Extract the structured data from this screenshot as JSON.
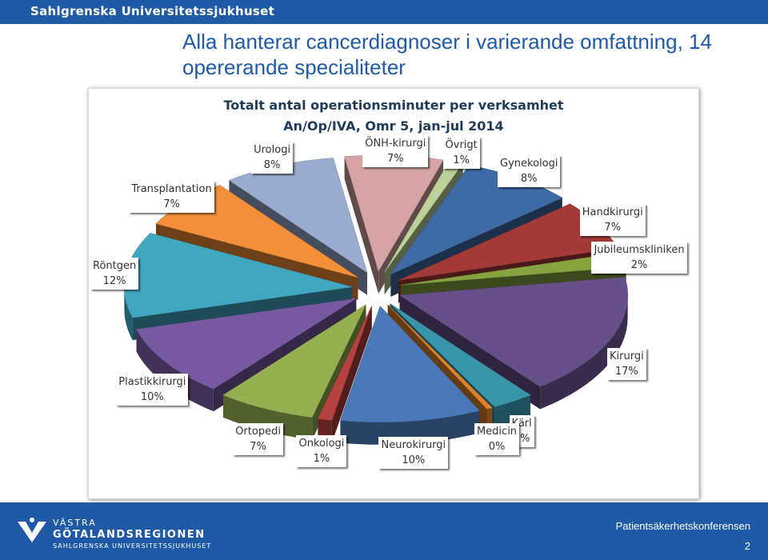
{
  "header": {
    "org_title": "Sahlgrenska Universitetssjukhuset"
  },
  "slide": {
    "title": "Alla hanterar cancerdiagnoser i varierande omfattning, 14 opererande specialiteter"
  },
  "chart_data": {
    "type": "pie",
    "title_line1": "Totalt antal operationsminuter per verksamhet",
    "title_line2": "An/Op/IVA, Omr 5, jan-jul 2014",
    "exploded": true,
    "three_d": true,
    "slices": [
      {
        "name": "Gynekologi",
        "value": 8,
        "label": "8%",
        "color": "#3e6aa5"
      },
      {
        "name": "Handkirurgi",
        "value": 7,
        "label": "7%",
        "color": "#a33a37"
      },
      {
        "name": "Jubileumskliniken",
        "value": 2,
        "label": "2%",
        "color": "#86a33f"
      },
      {
        "name": "Kirurgi",
        "value": 17,
        "label": "17%",
        "color": "#67508a"
      },
      {
        "name": "Kärl",
        "value": 3,
        "label": "3%",
        "color": "#3895aa"
      },
      {
        "name": "Medicin",
        "value": 0.4,
        "label": "0%",
        "color": "#e0822c"
      },
      {
        "name": "Neurokirurgi",
        "value": 10,
        "label": "10%",
        "color": "#4a78b8"
      },
      {
        "name": "Onkologi",
        "value": 1,
        "label": "1%",
        "color": "#b64240"
      },
      {
        "name": "Ortopedi",
        "value": 7,
        "label": "7%",
        "color": "#95b050"
      },
      {
        "name": "Plastikkirurgi",
        "value": 10,
        "label": "10%",
        "color": "#7659a0"
      },
      {
        "name": "Röntgen",
        "value": 12,
        "label": "12%",
        "color": "#40a7c0"
      },
      {
        "name": "Transplantation",
        "value": 7,
        "label": "7%",
        "color": "#f28f38"
      },
      {
        "name": "Urologi",
        "value": 8,
        "label": "8%",
        "color": "#9aabcf"
      },
      {
        "name": "ÖNH-kirurgi",
        "value": 7,
        "label": "7%",
        "color": "#d7a4a5"
      },
      {
        "name": "Övrigt",
        "value": 1,
        "label": "1%",
        "color": "#bcd29a"
      }
    ]
  },
  "footer": {
    "org_line1": "VÄSTRA",
    "org_line2": "GÖTALANDSREGIONEN",
    "org_line3": "SAHLGRENSKA UNIVERSITETSSJUKHUSET",
    "conference": "Patientsäkerhetskonferensen",
    "page_number": "2"
  }
}
